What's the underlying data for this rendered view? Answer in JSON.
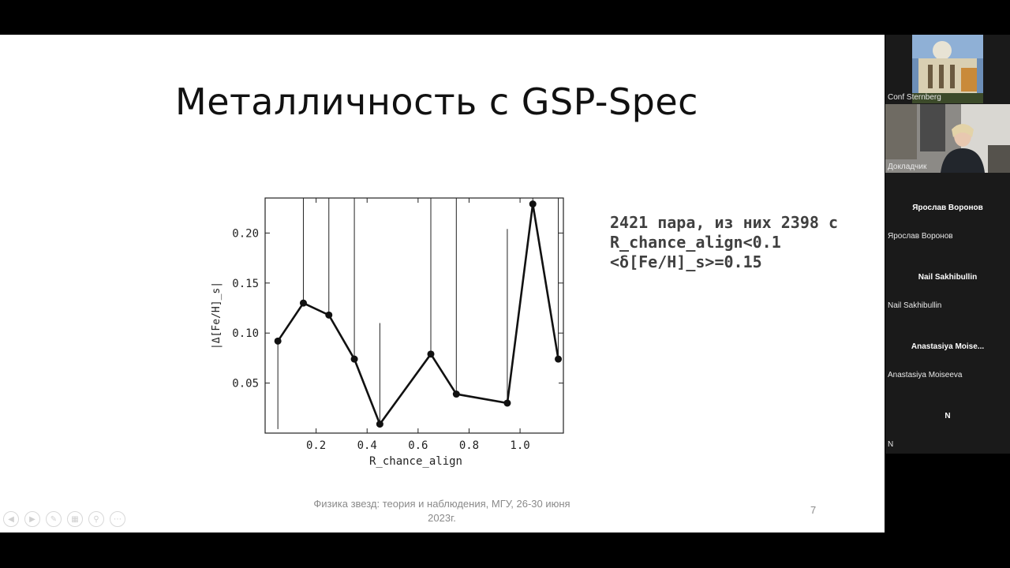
{
  "slide": {
    "title": "Металличность с GSP-Spec",
    "stats": [
      "2421 пара, из них 2398 с",
      "R_chance_align<0.1",
      "<δ[Fe/H]_s>=0.15"
    ],
    "footer": "Физика звезд: теория и наблюдения, МГУ, 26-30 июня 2023г.",
    "number": "7"
  },
  "chart_data": {
    "type": "line",
    "xlabel": "R_chance_align",
    "ylabel": "|Δ[Fe/H]_s|",
    "xlim": [
      0.0,
      1.17
    ],
    "ylim": [
      0.0,
      0.235
    ],
    "xticks": [
      {
        "value": 0.2,
        "label": "0.2"
      },
      {
        "value": 0.4,
        "label": "0.4"
      },
      {
        "value": 0.6,
        "label": "0.6"
      },
      {
        "value": 0.8,
        "label": "0.8"
      },
      {
        "value": 1.0,
        "label": "1.0"
      }
    ],
    "yticks": [
      {
        "value": 0.05,
        "label": "0.05"
      },
      {
        "value": 0.1,
        "label": "0.10"
      },
      {
        "value": 0.15,
        "label": "0.15"
      },
      {
        "value": 0.2,
        "label": "0.20"
      }
    ],
    "series": [
      {
        "x": [
          0.05,
          0.15,
          0.25,
          0.35,
          0.45,
          0.65,
          0.75,
          0.95,
          1.05,
          1.15
        ],
        "y": [
          0.092,
          0.13,
          0.118,
          0.074,
          0.009,
          0.079,
          0.039,
          0.03,
          0.229,
          0.074
        ],
        "error_up": [
          0.004,
          0.235,
          0.235,
          0.235,
          0.11,
          0.235,
          0.235,
          0.204,
          0.235,
          0.235
        ]
      }
    ]
  },
  "participants": [
    {
      "name": "Conf Sternberg",
      "video": "building"
    },
    {
      "name": "Докладчик",
      "video": "speaker"
    },
    {
      "name": "Ярослав Воронов",
      "caption": "Ярослав Воронов"
    },
    {
      "name": "Nail Sakhibullin",
      "caption": "Nail Sakhibullin"
    },
    {
      "name": "Anastasiya  Moise...",
      "caption": "Anastasiya Moiseeva"
    },
    {
      "name": "N",
      "caption": "N"
    }
  ],
  "controls": [
    "prev-icon",
    "next-icon",
    "pen-icon",
    "slides-icon",
    "zoom-icon",
    "more-icon"
  ]
}
